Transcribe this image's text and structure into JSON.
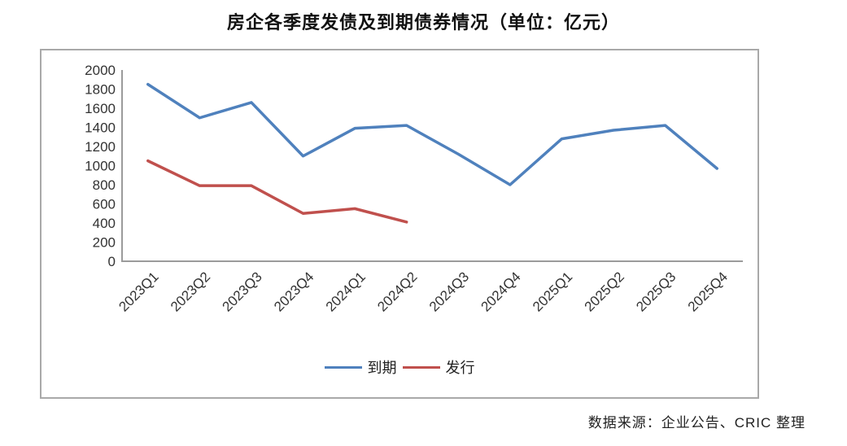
{
  "source_note": "数据来源：企业公告、CRIC 整理",
  "chart_data": {
    "type": "line",
    "title": "房企各季度发债及到期债券情况（单位：亿元）",
    "categories": [
      "2023Q1",
      "2023Q2",
      "2023Q3",
      "2023Q4",
      "2024Q1",
      "2024Q2",
      "2024Q3",
      "2024Q4",
      "2025Q1",
      "2025Q2",
      "2025Q3",
      "2025Q4"
    ],
    "series": [
      {
        "name": "到期",
        "color": "#4F81BD",
        "values": [
          1850,
          1500,
          1660,
          1100,
          1390,
          1420,
          1120,
          800,
          1280,
          1370,
          1420,
          970
        ]
      },
      {
        "name": "发行",
        "color": "#C0504D",
        "values": [
          1050,
          790,
          790,
          500,
          550,
          410,
          null,
          null,
          null,
          null,
          null,
          null
        ]
      }
    ],
    "ylim": [
      0,
      2000
    ],
    "ytick_step": 200,
    "xlabel": "",
    "ylabel": "",
    "grid": "off",
    "legend_position": "bottom",
    "axis_color": "#9b9b9b",
    "label_color": "#333333"
  }
}
